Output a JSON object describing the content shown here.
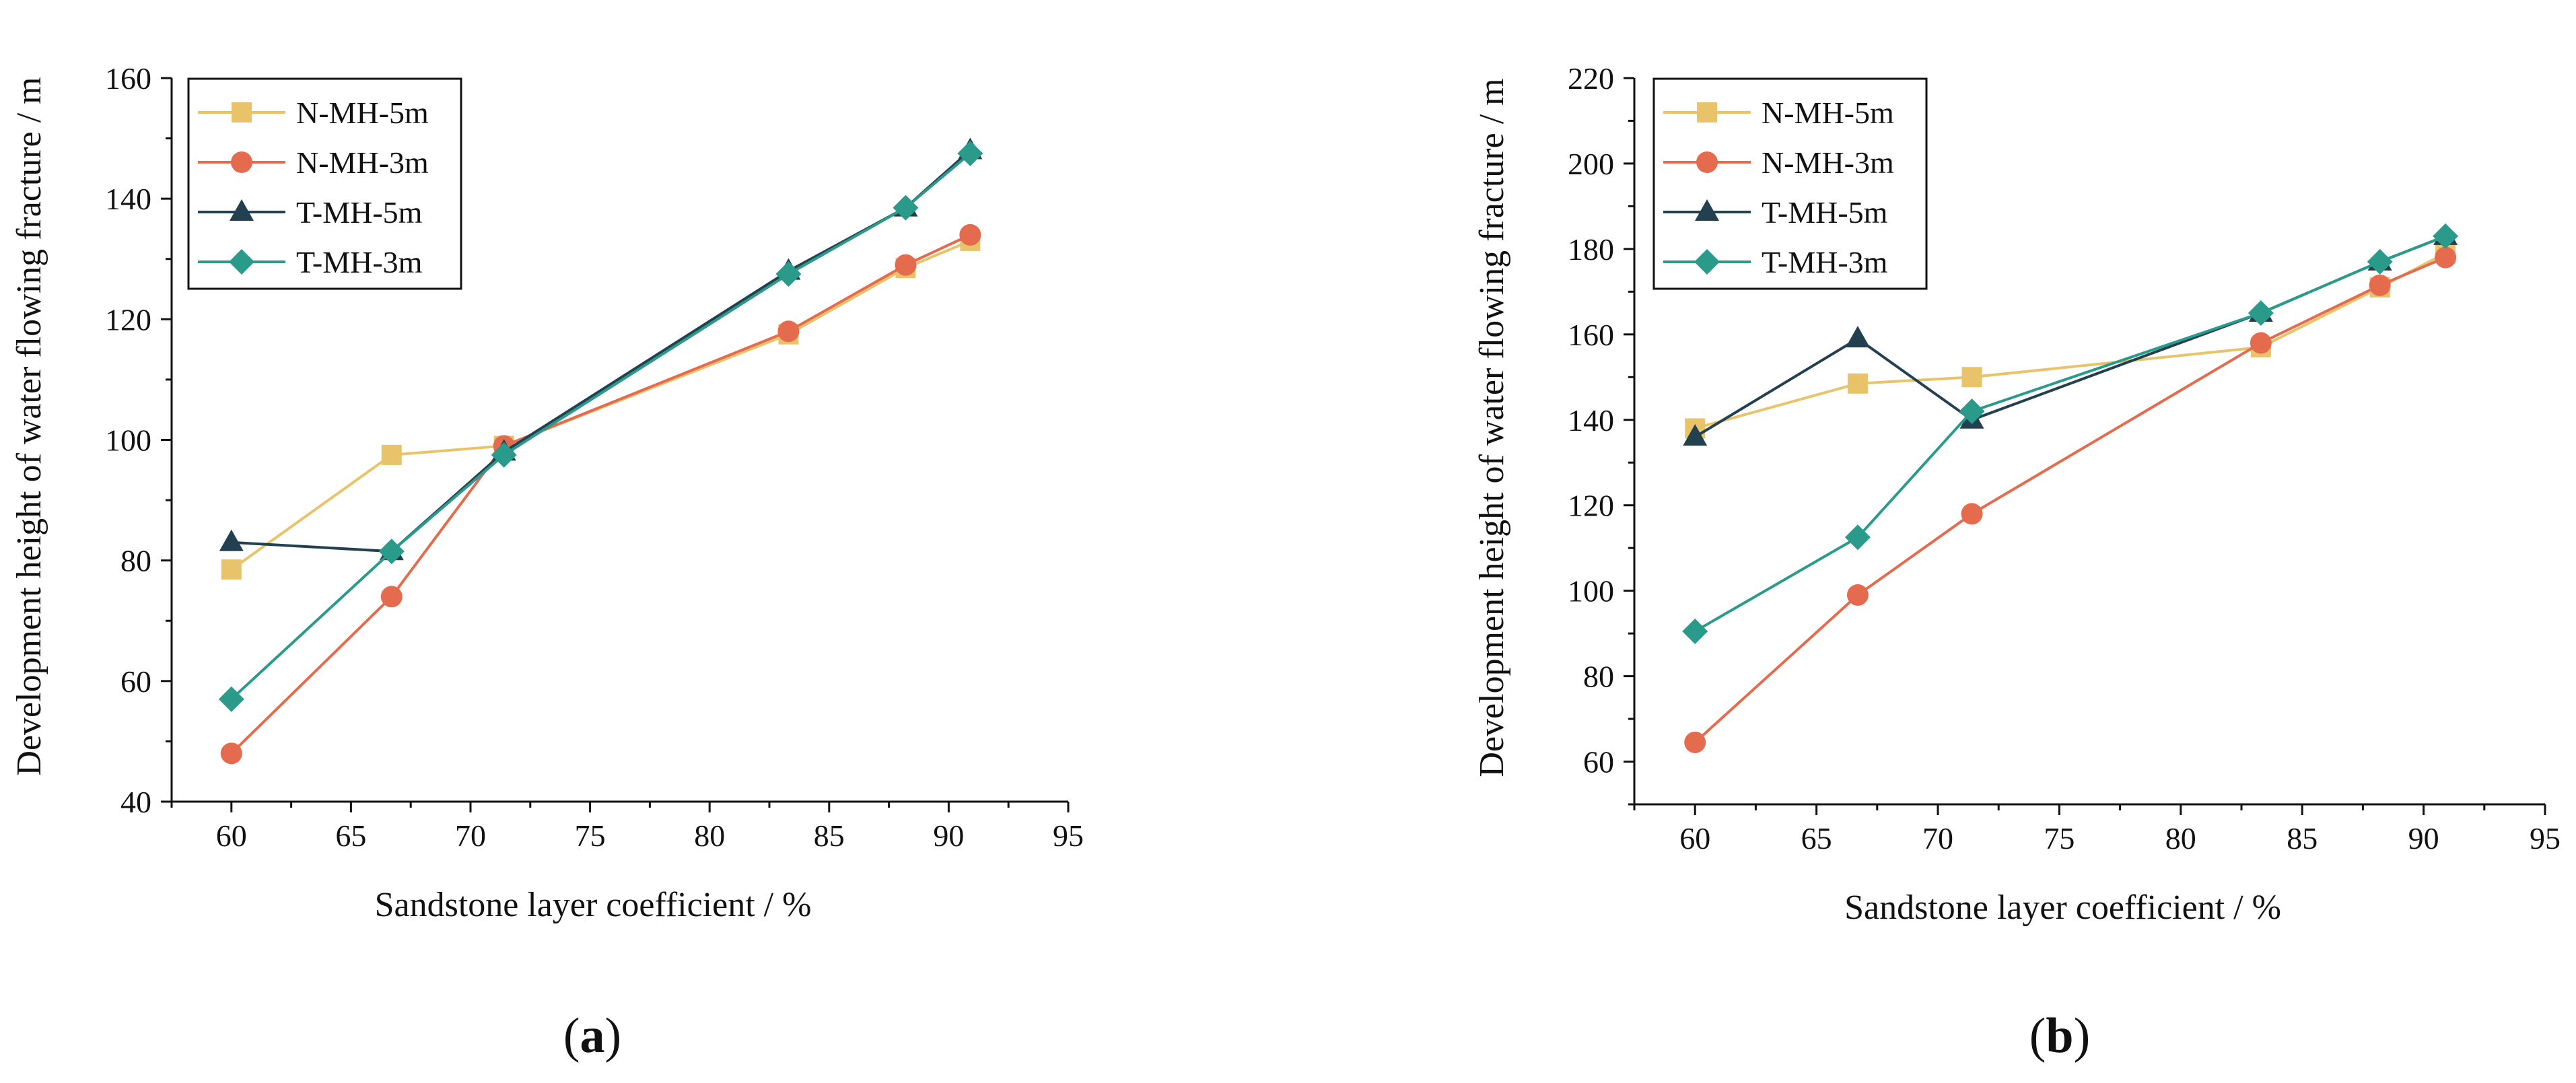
{
  "chart_data": [
    {
      "type": "line",
      "panel_label": "a",
      "xlabel": "Sandstone layer coefficient / %",
      "ylabel": "Development height of water flowing fracture / m",
      "xlim": [
        57.5,
        95
      ],
      "ylim": [
        40,
        160
      ],
      "xticks": [
        60,
        65,
        70,
        75,
        80,
        85,
        90,
        95
      ],
      "yticks": [
        40,
        60,
        80,
        100,
        120,
        140,
        160
      ],
      "legend_position": "top-left",
      "grid": false,
      "x": [
        60,
        66.7,
        71.4,
        83.3,
        88.2,
        90.9
      ],
      "series": [
        {
          "name": "N-MH-5m",
          "marker": "square",
          "color": "#E8C36A",
          "values": [
            78.5,
            97.5,
            99,
            117.5,
            128.5,
            133
          ]
        },
        {
          "name": "N-MH-3m",
          "marker": "circle",
          "color": "#E56B4E",
          "values": [
            48,
            74,
            99,
            118,
            129,
            134
          ]
        },
        {
          "name": "T-MH-5m",
          "marker": "triangle",
          "color": "#22404F",
          "values": [
            83,
            81.5,
            98,
            128,
            138.5,
            148
          ]
        },
        {
          "name": "T-MH-3m",
          "marker": "diamond",
          "color": "#2A9A8A",
          "values": [
            57,
            81.5,
            97.5,
            127.5,
            138.5,
            147.5
          ]
        }
      ]
    },
    {
      "type": "line",
      "panel_label": "b",
      "xlabel": "Sandstone layer coefficient / %",
      "ylabel": "Development height of water flowing fracture / m",
      "xlim": [
        57.5,
        95
      ],
      "ylim": [
        50,
        220
      ],
      "xticks": [
        60,
        65,
        70,
        75,
        80,
        85,
        90,
        95
      ],
      "yticks": [
        60,
        80,
        100,
        120,
        140,
        160,
        180,
        200,
        220
      ],
      "legend_position": "top-left",
      "grid": false,
      "x": [
        60,
        66.7,
        71.4,
        83.3,
        88.2,
        90.9
      ],
      "series": [
        {
          "name": "N-MH-5m",
          "marker": "square",
          "color": "#E8C36A",
          "values": [
            138,
            148.5,
            150,
            157,
            171,
            179
          ]
        },
        {
          "name": "N-MH-3m",
          "marker": "circle",
          "color": "#E56B4E",
          "values": [
            64.5,
            99,
            118,
            158,
            171.5,
            178
          ]
        },
        {
          "name": "T-MH-5m",
          "marker": "triangle",
          "color": "#22404F",
          "values": [
            136,
            159,
            140,
            165,
            177,
            183
          ]
        },
        {
          "name": "T-MH-3m",
          "marker": "diamond",
          "color": "#2A9A8A",
          "values": [
            90.5,
            112.5,
            142,
            165,
            177,
            183
          ]
        }
      ]
    }
  ]
}
